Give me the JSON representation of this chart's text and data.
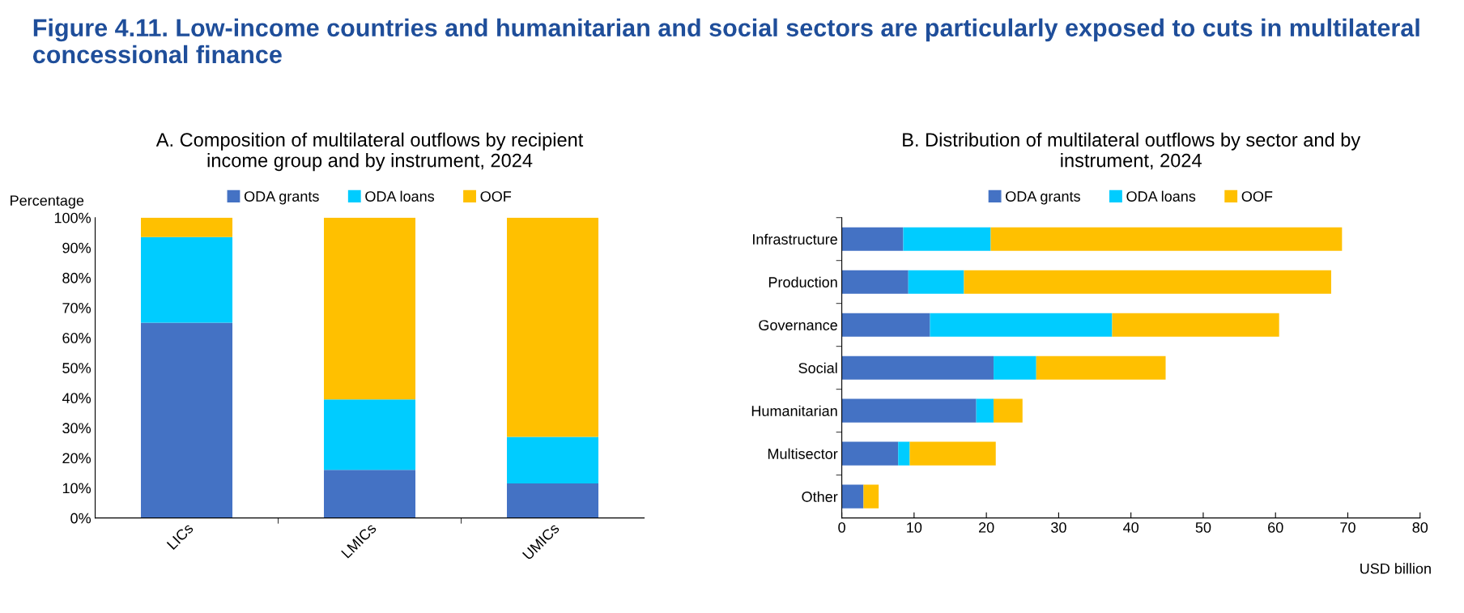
{
  "chart_data": [
    {
      "type": "bar",
      "title": "A. Composition of multilateral outflows by recipient\nincome group and by instrument, 2024",
      "ylabel": "Percentage",
      "stacked": true,
      "legend": "top",
      "grid": false,
      "categories": [
        "LICs",
        "LMICs",
        "UMICs"
      ],
      "series": [
        {
          "name": "ODA grants",
          "color": "#4472c4",
          "values": [
            65,
            16,
            11.5
          ]
        },
        {
          "name": "ODA loans",
          "color": "#00ccff",
          "values": [
            28.5,
            23.5,
            15.5
          ]
        },
        {
          "name": "OOF",
          "color": "#ffc000",
          "values": [
            6.5,
            60.5,
            73
          ]
        }
      ],
      "ylim": [
        0,
        100
      ],
      "yticks": [
        {
          "value": 0,
          "label": "0%"
        },
        {
          "value": 10,
          "label": "10%"
        },
        {
          "value": 20,
          "label": "20%"
        },
        {
          "value": 30,
          "label": "30%"
        },
        {
          "value": 40,
          "label": "40%"
        },
        {
          "value": 50,
          "label": "50%"
        },
        {
          "value": 60,
          "label": "60%"
        },
        {
          "value": 70,
          "label": "70%"
        },
        {
          "value": 80,
          "label": "80%"
        },
        {
          "value": 90,
          "label": "90%"
        },
        {
          "value": 100,
          "label": "100%"
        }
      ]
    },
    {
      "type": "bar",
      "title": "B. Distribution of multilateral outflows by sector and by\ninstrument, 2024",
      "xlabel": "USD billion",
      "stacked": true,
      "orientation": "horizontal",
      "legend": "top",
      "grid": false,
      "categories": [
        "Infrastructure",
        "Production",
        "Governance",
        "Social",
        "Humanitarian",
        "Multisector",
        "Other"
      ],
      "series": [
        {
          "name": "ODA grants",
          "color": "#4472c4",
          "values": [
            8.5,
            9.2,
            12.2,
            21.0,
            18.6,
            7.8,
            3.0
          ]
        },
        {
          "name": "ODA loans",
          "color": "#00ccff",
          "values": [
            12.1,
            7.7,
            25.2,
            5.9,
            2.4,
            1.6,
            0
          ]
        },
        {
          "name": "OOF",
          "color": "#ffc000",
          "values": [
            48.6,
            50.8,
            23.1,
            17.9,
            4.0,
            11.9,
            2.1
          ]
        }
      ],
      "xlim": [
        0,
        80
      ],
      "xticks": [
        0,
        10,
        20,
        30,
        40,
        50,
        60,
        70,
        80
      ],
      "annotations": [
        "Figure 4.11. Low-income countries and humanitarian and social sectors are particularly exposed to cuts in multilateral concessional finance"
      ]
    }
  ]
}
